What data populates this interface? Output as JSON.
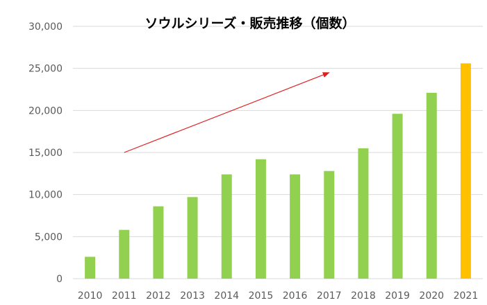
{
  "chart_data": {
    "type": "bar",
    "title": "ソウルシリーズ・販売推移（個数）",
    "xlabel": "",
    "ylabel": "",
    "categories": [
      "2010",
      "2011",
      "2012",
      "2013",
      "2014",
      "2015",
      "2016",
      "2017",
      "2018",
      "2019",
      "2020",
      "2021"
    ],
    "values": [
      2600,
      5800,
      8600,
      9700,
      12400,
      14200,
      12400,
      12800,
      15500,
      19600,
      22100,
      25600
    ],
    "ylim": [
      0,
      30000
    ],
    "yticks": [
      0,
      5000,
      10000,
      15000,
      20000,
      25000,
      30000
    ],
    "ytick_labels": [
      "0",
      "5,000",
      "10,000",
      "15,000",
      "20,000",
      "25,000",
      "30,000"
    ],
    "grid": true,
    "bar_colors": [
      "#92d050",
      "#92d050",
      "#92d050",
      "#92d050",
      "#92d050",
      "#92d050",
      "#92d050",
      "#92d050",
      "#92d050",
      "#92d050",
      "#92d050",
      "#ffc000"
    ],
    "annotation": {
      "type": "arrow",
      "color": "#e02020",
      "from": {
        "x": "2011",
        "y": 15000
      },
      "to": {
        "x": "2017",
        "y": 24500
      }
    }
  }
}
